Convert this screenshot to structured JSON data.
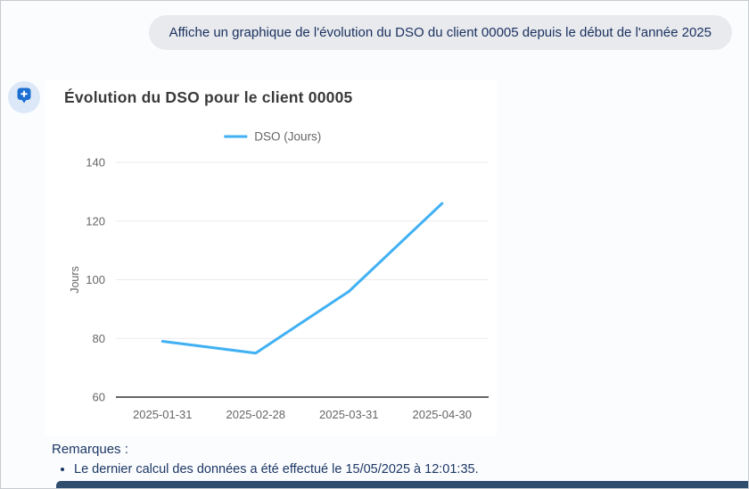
{
  "user_message": {
    "text": "Affiche un graphique de l'évolution du DSO du client 00005 depuis le début de l'année 2025"
  },
  "assistant": {
    "avatar_icon": "plus-bubble-icon",
    "card_title": "Évolution du DSO pour le client 00005"
  },
  "chart_data": {
    "type": "line",
    "title": "Évolution du DSO pour le client 00005",
    "x": [
      "2025-01-31",
      "2025-02-28",
      "2025-03-31",
      "2025-04-30"
    ],
    "series": [
      {
        "name": "DSO (Jours)",
        "values": [
          79,
          75,
          96,
          126
        ],
        "color": "#41b1f3"
      }
    ],
    "xlabel": "",
    "ylabel": "Jours",
    "ylim": [
      60,
      140
    ],
    "yticks": [
      60,
      80,
      100,
      120,
      140
    ],
    "grid": true,
    "legend_position": "top",
    "axis_text_color": "#666666",
    "gridline_color": "#ebebeb",
    "axis_line_color": "#666666"
  },
  "remarks": {
    "heading": "Remarques :",
    "items": [
      "Le dernier calcul des données a été effectué le 15/05/2025 à 12:01:35."
    ]
  },
  "colors": {
    "line": "#41b1f3",
    "avatar_bg": "#dce8f7",
    "avatar_glyph": "#1d6fd2",
    "bubble_bg": "#e8eaee",
    "navy_text": "#1c3260",
    "bottom_bar": "#2e4d6f",
    "page_bg": "#fbfcfe",
    "card_bg": "#ffffff"
  }
}
